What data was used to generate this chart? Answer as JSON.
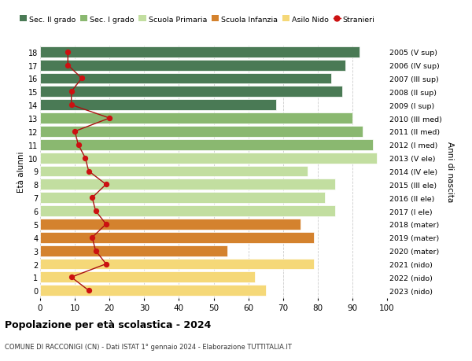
{
  "ages": [
    18,
    17,
    16,
    15,
    14,
    13,
    12,
    11,
    10,
    9,
    8,
    7,
    6,
    5,
    4,
    3,
    2,
    1,
    0
  ],
  "years": [
    "2005 (V sup)",
    "2006 (IV sup)",
    "2007 (III sup)",
    "2008 (II sup)",
    "2009 (I sup)",
    "2010 (III med)",
    "2011 (II med)",
    "2012 (I med)",
    "2013 (V ele)",
    "2014 (IV ele)",
    "2015 (III ele)",
    "2016 (II ele)",
    "2017 (I ele)",
    "2018 (mater)",
    "2019 (mater)",
    "2020 (mater)",
    "2021 (nido)",
    "2022 (nido)",
    "2023 (nido)"
  ],
  "bar_values": [
    92,
    88,
    84,
    87,
    68,
    90,
    93,
    96,
    97,
    77,
    85,
    82,
    85,
    75,
    79,
    54,
    79,
    62,
    65
  ],
  "bar_colors": [
    "#4a7a55",
    "#4a7a55",
    "#4a7a55",
    "#4a7a55",
    "#4a7a55",
    "#8ab870",
    "#8ab870",
    "#8ab870",
    "#c2dea0",
    "#c2dea0",
    "#c2dea0",
    "#c2dea0",
    "#c2dea0",
    "#d4822e",
    "#d4822e",
    "#d4822e",
    "#f5d878",
    "#f5d878",
    "#f5d878"
  ],
  "stranieri_values": [
    8,
    8,
    12,
    9,
    9,
    20,
    10,
    11,
    13,
    14,
    19,
    15,
    16,
    19,
    15,
    16,
    19,
    9,
    14
  ],
  "title": "Popolazione per età scolastica - 2024",
  "subtitle": "COMUNE DI RACCONIGI (CN) - Dati ISTAT 1° gennaio 2024 - Elaborazione TUTTITALIA.IT",
  "ylabel_left": "Età alunni",
  "ylabel_right": "Anni di nascita",
  "legend_labels": [
    "Sec. II grado",
    "Sec. I grado",
    "Scuola Primaria",
    "Scuola Infanzia",
    "Asilo Nido",
    "Stranieri"
  ],
  "legend_colors": [
    "#4a7a55",
    "#8ab870",
    "#c2dea0",
    "#d4822e",
    "#f5d878",
    "#cc1111"
  ],
  "bg_color": "#ffffff",
  "grid_color": "#cccccc",
  "stranieri_line_color": "#aa1111",
  "stranieri_dot_color": "#cc1111",
  "xlim": [
    0,
    100
  ],
  "xticks": [
    0,
    10,
    20,
    30,
    40,
    50,
    60,
    70,
    80,
    90,
    100
  ]
}
